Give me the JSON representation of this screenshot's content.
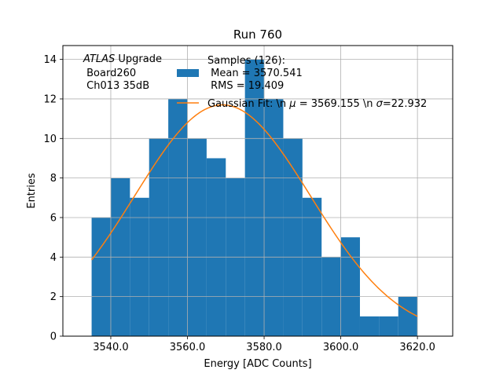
{
  "chart_data": {
    "type": "bar",
    "title": "Run 760",
    "xlabel": "Energy [ADC Counts]",
    "ylabel": "Entries",
    "xlim": [
      3527.5,
      3629.2
    ],
    "ylim": [
      0,
      14.7
    ],
    "xticks": [
      3540.0,
      3560.0,
      3580.0,
      3600.0,
      3620.0
    ],
    "xtick_labels": [
      "3540.0",
      "3560.0",
      "3580.0",
      "3600.0",
      "3620.0"
    ],
    "yticks": [
      0,
      2,
      4,
      6,
      8,
      10,
      12,
      14
    ],
    "ytick_labels": [
      "0",
      "2",
      "4",
      "6",
      "8",
      "10",
      "12",
      "14"
    ],
    "grid": true,
    "bar_color": "#1f77b4",
    "fit_color": "#ff7f0e",
    "bins": {
      "edges": [
        3535,
        3540,
        3545,
        3550,
        3555,
        3560,
        3565,
        3570,
        3575,
        3580,
        3585,
        3590,
        3595,
        3600,
        3605,
        3610,
        3615,
        3620
      ],
      "counts": [
        6,
        8,
        7,
        10,
        12,
        10,
        9,
        8,
        14,
        12,
        10,
        7,
        4,
        5,
        1,
        1,
        2
      ]
    },
    "fit": {
      "type": "gaussian",
      "mu": 3569.155,
      "sigma": 22.932,
      "amplitude": 11.7,
      "x_range": [
        3535,
        3620
      ]
    },
    "annotation": {
      "italic": "ATLAS",
      "rest": " Upgrade",
      "line2": " Board260",
      "line3": " Ch013 35dB"
    },
    "legend": {
      "placement": "top-right",
      "hist_line1": "Samples (126):",
      "hist_line2": " Mean = 3570.541",
      "hist_line3": " RMS = 19.409",
      "fit_prefix": "Gaussian Fit: \\n ",
      "fit_mu_symbol": "μ",
      "fit_middle": " = 3569.155 \\n ",
      "fit_sigma_symbol": "σ",
      "fit_suffix": "=22.932"
    }
  }
}
